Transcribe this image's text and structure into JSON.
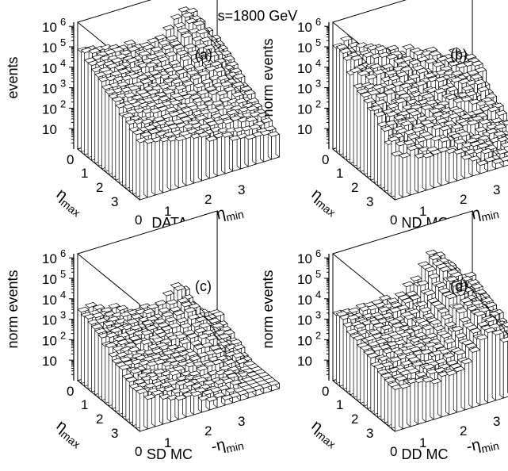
{
  "figure": {
    "title": "√s=1800 GeV"
  },
  "chart_data": [
    {
      "type": "lego",
      "panel": "(a)",
      "caption": "DATA",
      "zlabel": "events",
      "xlabel": "ηmax",
      "ylabel": "-ηmin",
      "x_ticks": [
        "0",
        "1",
        "2",
        "3"
      ],
      "y_ticks": [
        "0",
        "1",
        "2",
        "3"
      ],
      "z_ticks": [
        "10",
        "10",
        "10",
        "10",
        "10",
        "10"
      ],
      "z_exponents": [
        "",
        "2",
        "3",
        "4",
        "5",
        "6"
      ],
      "z_scale": "log",
      "z_range": [
        1,
        1000000
      ]
    },
    {
      "type": "lego",
      "panel": "(b)",
      "caption": "ND MC",
      "zlabel": "norm events",
      "xlabel": "ηmax",
      "ylabel": "-ηmin",
      "x_ticks": [
        "0",
        "1",
        "2",
        "3"
      ],
      "y_ticks": [
        "0",
        "1",
        "2",
        "3"
      ],
      "z_ticks": [
        "10",
        "10",
        "10",
        "10",
        "10",
        "10"
      ],
      "z_exponents": [
        "",
        "2",
        "3",
        "4",
        "5",
        "6"
      ],
      "z_scale": "log",
      "z_range": [
        1,
        1000000
      ]
    },
    {
      "type": "lego",
      "panel": "(c)",
      "caption": "SD MC",
      "zlabel": "norm events",
      "xlabel": "ηmax",
      "ylabel": "-ηmin",
      "x_ticks": [
        "0",
        "1",
        "2",
        "3"
      ],
      "y_ticks": [
        "0",
        "1",
        "2",
        "3"
      ],
      "z_ticks": [
        "10",
        "10",
        "10",
        "10",
        "10",
        "10"
      ],
      "z_exponents": [
        "",
        "2",
        "3",
        "4",
        "5",
        "6"
      ],
      "z_scale": "log",
      "z_range": [
        1,
        1000000
      ]
    },
    {
      "type": "lego",
      "panel": "(d)",
      "caption": "DD MC",
      "zlabel": "norm events",
      "xlabel": "ηmax",
      "ylabel": "-ηmin",
      "x_ticks": [
        "0",
        "1",
        "2",
        "3"
      ],
      "y_ticks": [
        "0",
        "1",
        "2",
        "3"
      ],
      "z_ticks": [
        "10",
        "10",
        "10",
        "10",
        "10",
        "10"
      ],
      "z_exponents": [
        "",
        "2",
        "3",
        "4",
        "5",
        "6"
      ],
      "z_scale": "log",
      "z_range": [
        1,
        1000000
      ]
    }
  ]
}
